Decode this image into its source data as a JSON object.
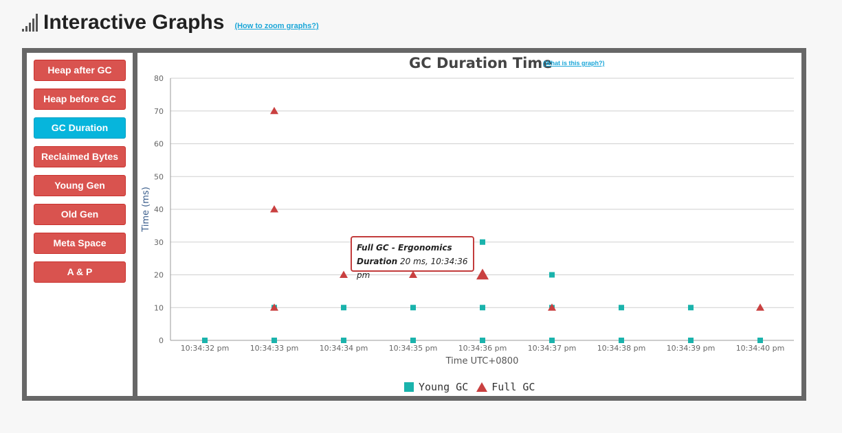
{
  "header": {
    "title": "Interactive Graphs",
    "zoom_link": "(How to zoom graphs?)",
    "icon": "signal-bars-icon"
  },
  "sidebar": {
    "items": [
      {
        "label": "Heap after GC",
        "active": false
      },
      {
        "label": "Heap before GC",
        "active": false
      },
      {
        "label": "GC Duration",
        "active": true
      },
      {
        "label": "Reclaimed Bytes",
        "active": false
      },
      {
        "label": "Young Gen",
        "active": false
      },
      {
        "label": "Old Gen",
        "active": false
      },
      {
        "label": "Meta Space",
        "active": false
      },
      {
        "label": "A & P",
        "active": false
      }
    ]
  },
  "colors": {
    "button": "#d9534f",
    "button_active": "#06b5dc",
    "young_gc": "#1ab3ac",
    "full_gc": "#c94040",
    "frame": "#676767"
  },
  "chart": {
    "what_link": "(What is this graph?)"
  },
  "tooltip": {
    "title": "Full GC - Ergonomics",
    "label": "Duration",
    "value": "20 ms, 10:34:36 pm"
  },
  "chart_data": {
    "type": "scatter",
    "title": "GC Duration Time",
    "xlabel": "Time UTC+0800",
    "ylabel": "Time (ms)",
    "ylim": [
      0,
      80
    ],
    "yticks": [
      0,
      10,
      20,
      30,
      40,
      50,
      60,
      70,
      80
    ],
    "categories": [
      "10:34:32 pm",
      "10:34:33 pm",
      "10:34:34 pm",
      "10:34:35 pm",
      "10:34:36 pm",
      "10:34:37 pm",
      "10:34:38 pm",
      "10:34:39 pm",
      "10:34:40 pm"
    ],
    "grid": true,
    "legend_position": "bottom-center",
    "series": [
      {
        "name": "Young GC",
        "marker": "square",
        "points": [
          {
            "x": "10:34:32 pm",
            "y": 0
          },
          {
            "x": "10:34:33 pm",
            "y": 0
          },
          {
            "x": "10:34:33 pm",
            "y": 10
          },
          {
            "x": "10:34:34 pm",
            "y": 0
          },
          {
            "x": "10:34:34 pm",
            "y": 10
          },
          {
            "x": "10:34:35 pm",
            "y": 0
          },
          {
            "x": "10:34:35 pm",
            "y": 10
          },
          {
            "x": "10:34:36 pm",
            "y": 0
          },
          {
            "x": "10:34:36 pm",
            "y": 10
          },
          {
            "x": "10:34:36 pm",
            "y": 30
          },
          {
            "x": "10:34:37 pm",
            "y": 0
          },
          {
            "x": "10:34:37 pm",
            "y": 10
          },
          {
            "x": "10:34:37 pm",
            "y": 20
          },
          {
            "x": "10:34:38 pm",
            "y": 0
          },
          {
            "x": "10:34:38 pm",
            "y": 10
          },
          {
            "x": "10:34:39 pm",
            "y": 0
          },
          {
            "x": "10:34:39 pm",
            "y": 10
          },
          {
            "x": "10:34:40 pm",
            "y": 0
          }
        ]
      },
      {
        "name": "Full GC",
        "marker": "triangle",
        "points": [
          {
            "x": "10:34:33 pm",
            "y": 70
          },
          {
            "x": "10:34:33 pm",
            "y": 40
          },
          {
            "x": "10:34:33 pm",
            "y": 10
          },
          {
            "x": "10:34:34 pm",
            "y": 20
          },
          {
            "x": "10:34:35 pm",
            "y": 20
          },
          {
            "x": "10:34:36 pm",
            "y": 20,
            "hovered": true
          },
          {
            "x": "10:34:37 pm",
            "y": 10
          },
          {
            "x": "10:34:40 pm",
            "y": 10
          }
        ]
      }
    ]
  }
}
